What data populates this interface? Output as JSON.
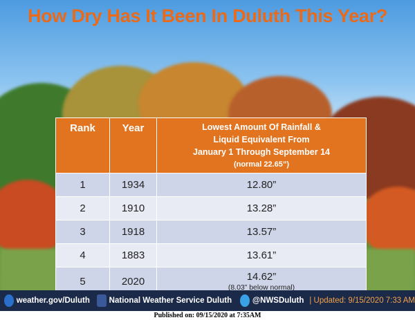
{
  "title": "How Dry Has It Been In Duluth This Year?",
  "table": {
    "headers": [
      "Rank",
      "Year"
    ],
    "value_header": {
      "lines": [
        "Lowest Amount Of Rainfall &",
        "Liquid Equivalent From",
        "January 1 Through September 14"
      ],
      "note": "(normal  22.65”)"
    },
    "rows": [
      [
        "1",
        "1934",
        "12.80”"
      ],
      [
        "2",
        "1910",
        "13.28”"
      ],
      [
        "3",
        "1918",
        "13.57”"
      ],
      [
        "4",
        "1883",
        "13.61”"
      ],
      [
        "5",
        "2020",
        "14.62”"
      ]
    ],
    "last_row_note": "(8.03” below normal)"
  },
  "footer": {
    "website": "weather.gov/Duluth",
    "facebook": "National Weather Service Duluth",
    "twitter": "@NWSDuluth",
    "updated": "| Updated: 9/15/2020 7:33 AM"
  },
  "published": "Published on: 09/15/2020 at 7:35AM"
}
